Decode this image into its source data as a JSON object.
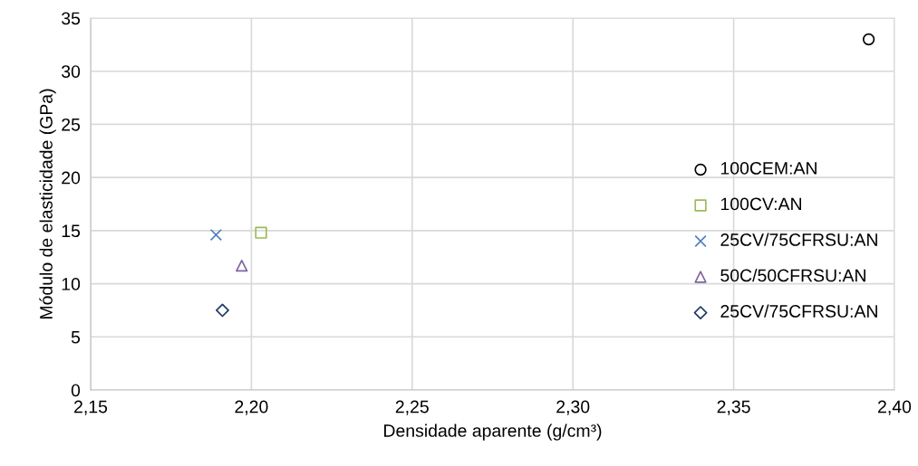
{
  "chart_data": {
    "type": "scatter",
    "xlabel": "Densidade aparente (g/cm³)",
    "ylabel": "Módulo de elasticidade (GPa)",
    "xlim": [
      2.15,
      2.4
    ],
    "xticks": [
      {
        "value": 2.15,
        "label": "2,15"
      },
      {
        "value": 2.2,
        "label": "2,20"
      },
      {
        "value": 2.25,
        "label": "2,25"
      },
      {
        "value": 2.3,
        "label": "2,30"
      },
      {
        "value": 2.35,
        "label": "2,35"
      },
      {
        "value": 2.4,
        "label": "2,40"
      }
    ],
    "ylim": [
      0,
      35
    ],
    "yticks": [
      0,
      5,
      10,
      15,
      20,
      25,
      30,
      35
    ],
    "grid": true,
    "legend": "right",
    "series": [
      {
        "name": "100CEM:AN",
        "color": "#000000",
        "marker": "circle",
        "x": [
          2.392
        ],
        "values": [
          33.0
        ]
      },
      {
        "name": "100CV:AN",
        "color": "#9bbb59",
        "marker": "square",
        "x": [
          2.203
        ],
        "values": [
          14.8
        ]
      },
      {
        "name": "25CV/75CFRSU:AN",
        "color": "#4f81bd",
        "marker": "cross",
        "x": [
          2.189
        ],
        "values": [
          14.6
        ]
      },
      {
        "name": "50C/50CFRSU:AN",
        "color": "#8064a2",
        "marker": "triangle",
        "x": [
          2.197
        ],
        "values": [
          11.7
        ]
      },
      {
        "name": "25CV/75CFRSU:AN",
        "color": "#1f3864",
        "marker": "diamond",
        "x": [
          2.191
        ],
        "values": [
          7.5
        ]
      }
    ]
  }
}
